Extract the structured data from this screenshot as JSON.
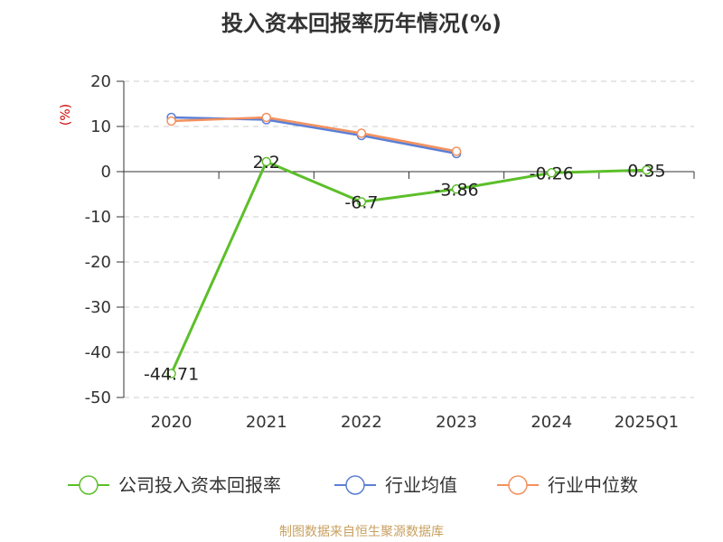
{
  "title": "投入资本回报率历年情况(%)",
  "source": "制图数据来自恒生聚源数据库",
  "colors": {
    "company": "#5cbf2a",
    "industry_avg": "#5b7fd6",
    "industry_median": "#f4915e"
  },
  "chart_data": {
    "type": "line",
    "title": "投入资本回报率历年情况(%)",
    "ylabel": "(%)",
    "xlabel": "",
    "categories": [
      "2020",
      "2021",
      "2022",
      "2023",
      "2024",
      "2025Q1"
    ],
    "ylim": [
      -50,
      20
    ],
    "yticks": [
      20,
      10,
      0,
      -10,
      -20,
      -30,
      -40,
      -50
    ],
    "grid": true,
    "legend_position": "bottom",
    "series": [
      {
        "name": "公司投入资本回报率",
        "values": [
          -44.71,
          2.2,
          -6.7,
          -3.86,
          -0.26,
          0.35
        ],
        "labels": [
          "-44.71",
          "2.2",
          "-6.7",
          "-3.86",
          "-0.26",
          "0.35"
        ]
      },
      {
        "name": "行业均值",
        "values": [
          12.0,
          11.5,
          8.0,
          4.0,
          null,
          null
        ]
      },
      {
        "name": "行业中位数",
        "values": [
          11.2,
          12.0,
          8.5,
          4.5,
          null,
          null
        ]
      }
    ]
  }
}
